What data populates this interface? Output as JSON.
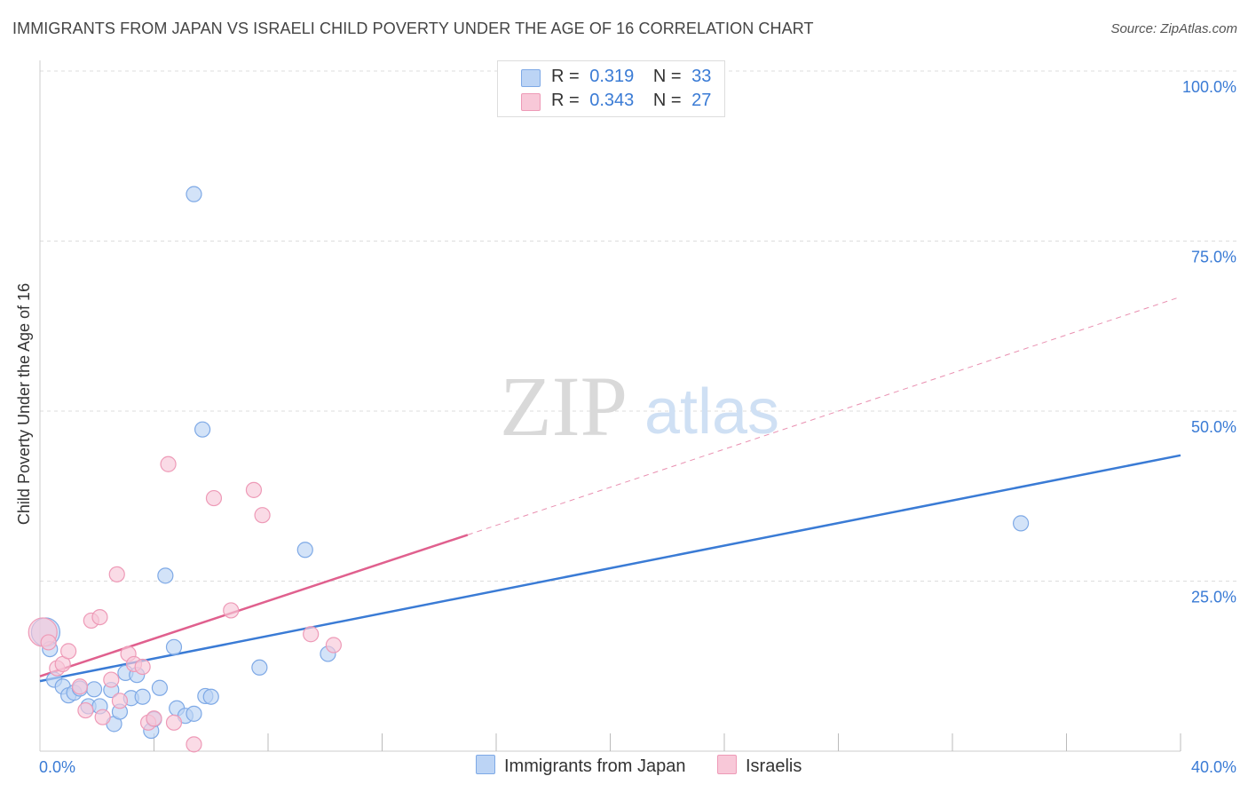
{
  "title": "IMMIGRANTS FROM JAPAN VS ISRAELI CHILD POVERTY UNDER THE AGE OF 16 CORRELATION CHART",
  "source": "Source: ZipAtlas.com",
  "watermark": {
    "zip": "ZIP",
    "atlas": "atlas"
  },
  "colors": {
    "blue": "#3a7bd5",
    "blue_fill": "#bcd4f5",
    "blue_stroke": "#7ea9e6",
    "pink": "#e0608e",
    "pink_fill": "#f8c8d8",
    "pink_stroke": "#ee9ab7",
    "grid": "#dddddd",
    "tick_label": "#3a7bd5"
  },
  "legend": {
    "r_label": "R =",
    "n_label": "N =",
    "rows": [
      {
        "series": "Immigrants from Japan",
        "r": "0.319",
        "n": "33"
      },
      {
        "series": "Israelis",
        "r": "0.343",
        "n": "27"
      }
    ]
  },
  "bottom_legend": [
    "Immigrants from Japan",
    "Israelis"
  ],
  "chart_data": {
    "type": "scatter",
    "title": "IMMIGRANTS FROM JAPAN VS ISRAELI CHILD POVERTY UNDER THE AGE OF 16 CORRELATION CHART",
    "xlabel": "",
    "ylabel": "Child Poverty Under the Age of 16",
    "xlim": [
      0,
      40
    ],
    "ylim": [
      0,
      100
    ],
    "x_tick_labels": [
      {
        "value": 0,
        "label": "0.0%"
      },
      {
        "value": 40,
        "label": "40.0%"
      }
    ],
    "y_tick_labels": [
      {
        "value": 100,
        "label": "100.0%"
      },
      {
        "value": 75,
        "label": "75.0%"
      },
      {
        "value": 50,
        "label": "50.0%"
      },
      {
        "value": 25,
        "label": "25.0%"
      }
    ],
    "x_minor_ticks": [
      4,
      8,
      12,
      16,
      20,
      24,
      28,
      32,
      36
    ],
    "series": [
      {
        "name": "Immigrants from Japan",
        "r": 0.319,
        "n": 33,
        "trend": {
          "x": [
            0,
            40
          ],
          "y": [
            10.3,
            43.5
          ],
          "style": "solid"
        },
        "points": [
          {
            "x": 0.2,
            "y": 17.5,
            "big": true
          },
          {
            "x": 0.35,
            "y": 15.0
          },
          {
            "x": 0.5,
            "y": 10.5
          },
          {
            "x": 0.8,
            "y": 9.5
          },
          {
            "x": 1.0,
            "y": 8.2
          },
          {
            "x": 1.2,
            "y": 8.6
          },
          {
            "x": 1.4,
            "y": 9.2
          },
          {
            "x": 1.7,
            "y": 6.6
          },
          {
            "x": 1.9,
            "y": 9.1
          },
          {
            "x": 2.1,
            "y": 6.6
          },
          {
            "x": 2.5,
            "y": 9.0
          },
          {
            "x": 2.6,
            "y": 4.0
          },
          {
            "x": 2.8,
            "y": 5.8
          },
          {
            "x": 3.0,
            "y": 11.5
          },
          {
            "x": 3.2,
            "y": 7.8
          },
          {
            "x": 3.4,
            "y": 11.2
          },
          {
            "x": 3.6,
            "y": 8.0
          },
          {
            "x": 3.9,
            "y": 3.0
          },
          {
            "x": 4.0,
            "y": 4.7
          },
          {
            "x": 4.2,
            "y": 9.3
          },
          {
            "x": 4.4,
            "y": 25.8
          },
          {
            "x": 4.7,
            "y": 15.3
          },
          {
            "x": 4.8,
            "y": 6.3
          },
          {
            "x": 5.1,
            "y": 5.2
          },
          {
            "x": 5.4,
            "y": 5.5
          },
          {
            "x": 5.7,
            "y": 47.3
          },
          {
            "x": 5.8,
            "y": 8.1
          },
          {
            "x": 6.0,
            "y": 8.0
          },
          {
            "x": 5.4,
            "y": 81.9
          },
          {
            "x": 7.7,
            "y": 12.3
          },
          {
            "x": 9.3,
            "y": 29.6
          },
          {
            "x": 10.1,
            "y": 14.3
          },
          {
            "x": 34.4,
            "y": 33.5
          }
        ]
      },
      {
        "name": "Israelis",
        "r": 0.343,
        "n": 27,
        "trend": {
          "x": [
            0,
            15
          ],
          "y": [
            11.0,
            31.8
          ],
          "style": "solid",
          "extended_x": [
            15,
            40
          ],
          "extended_y": [
            31.8,
            66.8
          ],
          "extended_style": "dashed"
        },
        "points": [
          {
            "x": 0.1,
            "y": 17.5,
            "big": true
          },
          {
            "x": 0.3,
            "y": 16.0
          },
          {
            "x": 0.6,
            "y": 12.2
          },
          {
            "x": 0.8,
            "y": 12.8
          },
          {
            "x": 1.0,
            "y": 14.7
          },
          {
            "x": 1.4,
            "y": 9.5
          },
          {
            "x": 1.6,
            "y": 6.0
          },
          {
            "x": 1.8,
            "y": 19.2
          },
          {
            "x": 2.1,
            "y": 19.7
          },
          {
            "x": 2.2,
            "y": 5.0
          },
          {
            "x": 2.5,
            "y": 10.5
          },
          {
            "x": 2.7,
            "y": 26.0
          },
          {
            "x": 2.8,
            "y": 7.4
          },
          {
            "x": 3.1,
            "y": 14.3
          },
          {
            "x": 3.3,
            "y": 12.8
          },
          {
            "x": 3.6,
            "y": 12.4
          },
          {
            "x": 3.8,
            "y": 4.2
          },
          {
            "x": 4.0,
            "y": 4.8
          },
          {
            "x": 4.5,
            "y": 42.2
          },
          {
            "x": 4.7,
            "y": 4.2
          },
          {
            "x": 5.4,
            "y": 1.0
          },
          {
            "x": 6.1,
            "y": 37.2
          },
          {
            "x": 6.7,
            "y": 20.7
          },
          {
            "x": 7.5,
            "y": 38.4
          },
          {
            "x": 7.8,
            "y": 34.7
          },
          {
            "x": 9.5,
            "y": 17.2
          },
          {
            "x": 10.3,
            "y": 15.6
          }
        ]
      }
    ]
  }
}
